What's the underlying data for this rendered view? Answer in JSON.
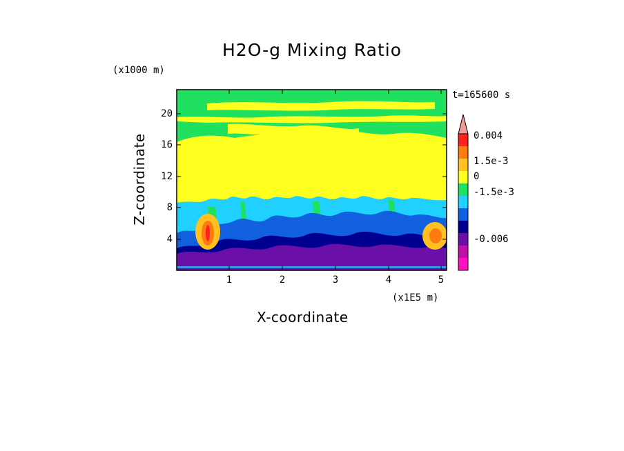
{
  "chart_data": {
    "type": "heatmap",
    "title": "H2O-g Mixing Ratio",
    "xlabel": "X-coordinate",
    "ylabel": "Z-coordinate",
    "x_unit": "(x1E5 m)",
    "y_unit": "(x1000 m)",
    "time_label": "t=165600 s",
    "xlim": [
      0,
      5.1
    ],
    "ylim": [
      0,
      23
    ],
    "x_ticks": [
      "1",
      "2",
      "3",
      "4",
      "5"
    ],
    "y_ticks": [
      "4",
      "8",
      "12",
      "16",
      "20"
    ],
    "colorbar": {
      "labels": [
        "0.004",
        "1.5e-3",
        "0",
        "-1.5e-3",
        "-0.006"
      ],
      "colors": [
        "#f09a9a",
        "#ff2020",
        "#ff7a10",
        "#ffc020",
        "#ffff20",
        "#20e060",
        "#20d0ff",
        "#1060e0",
        "#000090",
        "#6a10a8",
        "#c010a8",
        "#ff10c0"
      ]
    }
  }
}
